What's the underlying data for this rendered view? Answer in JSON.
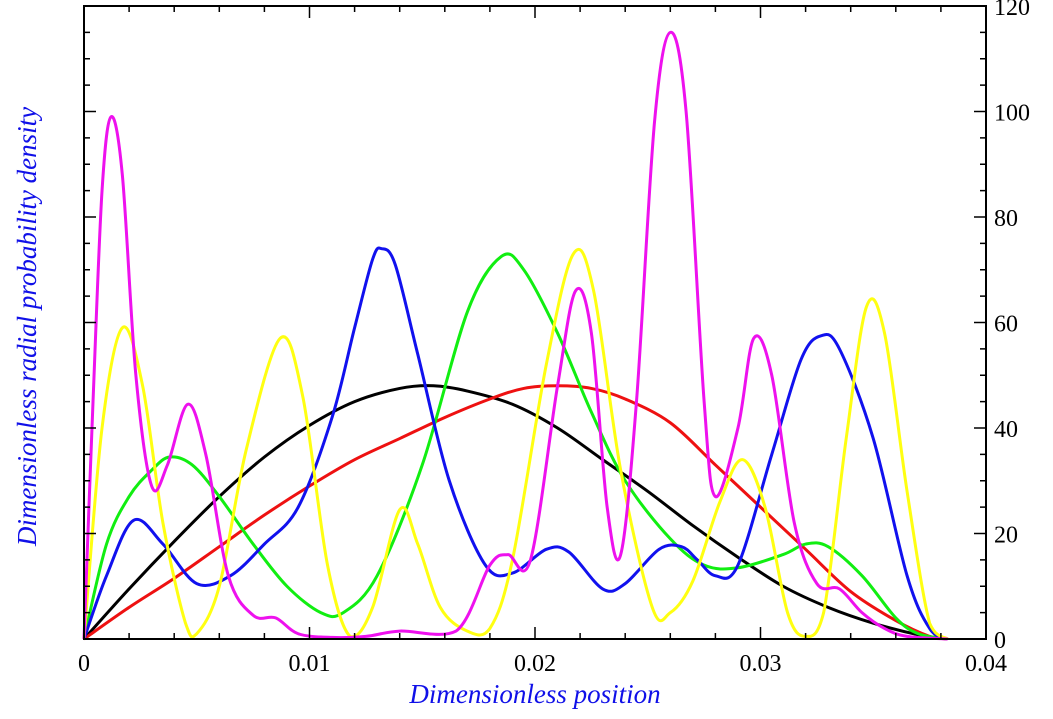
{
  "chart_data": {
    "type": "line",
    "title": "",
    "xlabel": "Dimensionless position",
    "ylabel": "Dimensionless radial probability density",
    "xlim": [
      0,
      0.04
    ],
    "ylim": [
      0,
      120
    ],
    "x_ticks": [
      0,
      0.01,
      0.02,
      0.03,
      0.04
    ],
    "x_tick_labels": [
      "0",
      "0.01",
      "0.02",
      "0.03",
      "0.04"
    ],
    "y_ticks": [
      0,
      20,
      40,
      60,
      80,
      100,
      120
    ],
    "y_tick_labels": [
      "0",
      "20",
      "40",
      "60",
      "80",
      "100",
      "120"
    ],
    "y_tick_side": "right",
    "grid": false,
    "legend": "none",
    "series": [
      {
        "color": "#000000",
        "points": [
          [
            0,
            0
          ],
          [
            0.002,
            9.5
          ],
          [
            0.004,
            18.5
          ],
          [
            0.006,
            27
          ],
          [
            0.008,
            34.5
          ],
          [
            0.01,
            40.5
          ],
          [
            0.012,
            45
          ],
          [
            0.014,
            47.5
          ],
          [
            0.0155,
            48
          ],
          [
            0.017,
            47
          ],
          [
            0.019,
            44.5
          ],
          [
            0.021,
            40
          ],
          [
            0.023,
            34
          ],
          [
            0.025,
            28
          ],
          [
            0.027,
            21.5
          ],
          [
            0.029,
            15.5
          ],
          [
            0.031,
            10
          ],
          [
            0.033,
            6
          ],
          [
            0.035,
            3
          ],
          [
            0.037,
            0.8
          ],
          [
            0.0383,
            0
          ]
        ]
      },
      {
        "color": "#ee1111",
        "points": [
          [
            0,
            0
          ],
          [
            0.002,
            6
          ],
          [
            0.004,
            11.5
          ],
          [
            0.006,
            17.5
          ],
          [
            0.008,
            23.5
          ],
          [
            0.01,
            29
          ],
          [
            0.012,
            34
          ],
          [
            0.014,
            38
          ],
          [
            0.016,
            42
          ],
          [
            0.018,
            45.5
          ],
          [
            0.0195,
            47.5
          ],
          [
            0.021,
            48
          ],
          [
            0.0225,
            47.5
          ],
          [
            0.024,
            45.5
          ],
          [
            0.026,
            41
          ],
          [
            0.028,
            33
          ],
          [
            0.03,
            25
          ],
          [
            0.032,
            17
          ],
          [
            0.034,
            9
          ],
          [
            0.036,
            3.5
          ],
          [
            0.0375,
            0.5
          ],
          [
            0.0383,
            0
          ]
        ]
      },
      {
        "color": "#11ee11",
        "points": [
          [
            0,
            0
          ],
          [
            0.001,
            18
          ],
          [
            0.002,
            27
          ],
          [
            0.003,
            32
          ],
          [
            0.0038,
            34.5
          ],
          [
            0.0048,
            33
          ],
          [
            0.006,
            27
          ],
          [
            0.0075,
            18
          ],
          [
            0.009,
            10
          ],
          [
            0.0105,
            5
          ],
          [
            0.0115,
            5
          ],
          [
            0.013,
            12
          ],
          [
            0.015,
            33
          ],
          [
            0.017,
            62
          ],
          [
            0.0185,
            72.5
          ],
          [
            0.0195,
            70
          ],
          [
            0.021,
            58
          ],
          [
            0.0225,
            43
          ],
          [
            0.024,
            30
          ],
          [
            0.026,
            19
          ],
          [
            0.0275,
            14
          ],
          [
            0.029,
            13.5
          ],
          [
            0.031,
            16
          ],
          [
            0.032,
            18
          ],
          [
            0.033,
            17.5
          ],
          [
            0.0345,
            12
          ],
          [
            0.036,
            4
          ],
          [
            0.037,
            1
          ],
          [
            0.0383,
            0
          ]
        ]
      },
      {
        "color": "#1111ee",
        "points": [
          [
            0,
            0
          ],
          [
            0.001,
            12
          ],
          [
            0.0022,
            22.5
          ],
          [
            0.0035,
            18
          ],
          [
            0.005,
            10.5
          ],
          [
            0.0065,
            12
          ],
          [
            0.008,
            18
          ],
          [
            0.0095,
            25
          ],
          [
            0.011,
            42
          ],
          [
            0.012,
            59
          ],
          [
            0.0128,
            72
          ],
          [
            0.0132,
            74
          ],
          [
            0.0138,
            71
          ],
          [
            0.0148,
            54
          ],
          [
            0.0162,
            30
          ],
          [
            0.0178,
            14
          ],
          [
            0.019,
            12.5
          ],
          [
            0.0205,
            17
          ],
          [
            0.0215,
            16.5
          ],
          [
            0.023,
            9.5
          ],
          [
            0.024,
            10.5
          ],
          [
            0.0255,
            17
          ],
          [
            0.0265,
            17.5
          ],
          [
            0.0272,
            15
          ],
          [
            0.028,
            12
          ],
          [
            0.029,
            14
          ],
          [
            0.0305,
            35
          ],
          [
            0.0318,
            53
          ],
          [
            0.0327,
            57.5
          ],
          [
            0.0335,
            55
          ],
          [
            0.035,
            38
          ],
          [
            0.0365,
            12
          ],
          [
            0.0375,
            2
          ],
          [
            0.0383,
            0
          ]
        ]
      },
      {
        "color": "#ffff11",
        "points": [
          [
            0,
            0
          ],
          [
            0.0008,
            40
          ],
          [
            0.0017,
            59
          ],
          [
            0.0026,
            48
          ],
          [
            0.0035,
            22
          ],
          [
            0.0045,
            3
          ],
          [
            0.005,
            1
          ],
          [
            0.006,
            10
          ],
          [
            0.0072,
            36
          ],
          [
            0.0087,
            57
          ],
          [
            0.0097,
            46
          ],
          [
            0.0108,
            14
          ],
          [
            0.0118,
            0.5
          ],
          [
            0.0128,
            6
          ],
          [
            0.014,
            24.5
          ],
          [
            0.0148,
            18
          ],
          [
            0.0158,
            6
          ],
          [
            0.017,
            1.5
          ],
          [
            0.018,
            2
          ],
          [
            0.019,
            15
          ],
          [
            0.0205,
            52
          ],
          [
            0.0217,
            73
          ],
          [
            0.0226,
            66
          ],
          [
            0.0238,
            32
          ],
          [
            0.0252,
            6
          ],
          [
            0.026,
            5
          ],
          [
            0.027,
            11
          ],
          [
            0.0282,
            26
          ],
          [
            0.0292,
            34
          ],
          [
            0.0302,
            25
          ],
          [
            0.0312,
            5
          ],
          [
            0.032,
            0.5
          ],
          [
            0.0328,
            5
          ],
          [
            0.0338,
            38
          ],
          [
            0.0347,
            63
          ],
          [
            0.0355,
            58
          ],
          [
            0.0365,
            28
          ],
          [
            0.0375,
            3
          ],
          [
            0.0383,
            0
          ]
        ]
      },
      {
        "color": "#ee11ee",
        "points": [
          [
            0,
            0
          ],
          [
            0.0004,
            45
          ],
          [
            0.0008,
            85
          ],
          [
            0.0012,
            99
          ],
          [
            0.0017,
            88
          ],
          [
            0.0023,
            50
          ],
          [
            0.003,
            29
          ],
          [
            0.0037,
            33
          ],
          [
            0.0046,
            44.5
          ],
          [
            0.0054,
            35
          ],
          [
            0.0064,
            12
          ],
          [
            0.0075,
            4.5
          ],
          [
            0.0085,
            4
          ],
          [
            0.0095,
            1
          ],
          [
            0.011,
            0.3
          ],
          [
            0.0125,
            0.5
          ],
          [
            0.014,
            1.5
          ],
          [
            0.0165,
            1.5
          ],
          [
            0.018,
            14
          ],
          [
            0.0188,
            16
          ],
          [
            0.0198,
            15
          ],
          [
            0.021,
            48
          ],
          [
            0.0218,
            66
          ],
          [
            0.0225,
            58
          ],
          [
            0.0232,
            25
          ],
          [
            0.0238,
            16
          ],
          [
            0.0245,
            45
          ],
          [
            0.0253,
            98
          ],
          [
            0.026,
            115
          ],
          [
            0.0267,
            100
          ],
          [
            0.0275,
            45
          ],
          [
            0.028,
            27
          ],
          [
            0.029,
            40
          ],
          [
            0.0297,
            57
          ],
          [
            0.0305,
            50
          ],
          [
            0.0315,
            22
          ],
          [
            0.0325,
            10.5
          ],
          [
            0.0335,
            9.5
          ],
          [
            0.0345,
            5
          ],
          [
            0.0355,
            2
          ],
          [
            0.0365,
            0.5
          ],
          [
            0.0383,
            0
          ]
        ]
      }
    ]
  }
}
